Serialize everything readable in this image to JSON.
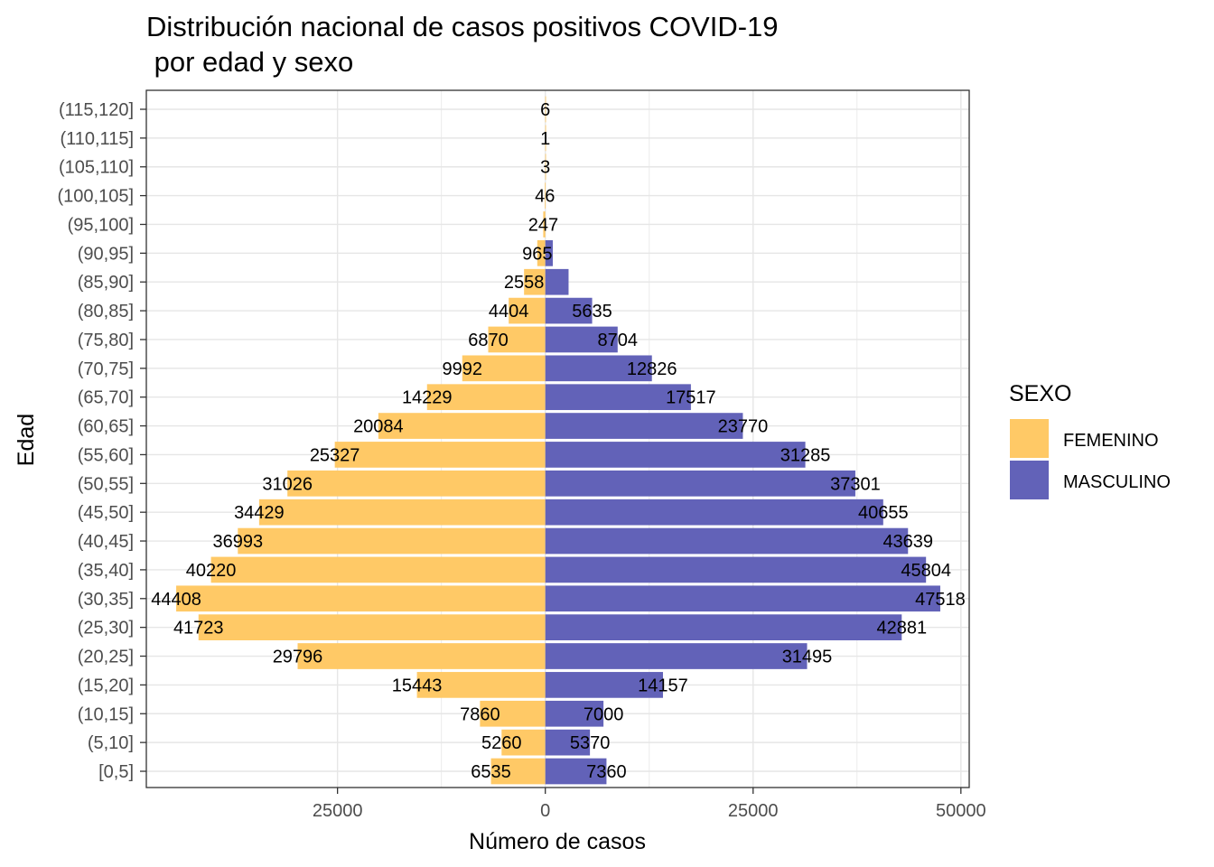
{
  "chart_data": {
    "type": "bar",
    "orientation": "horizontal",
    "layout": "population-pyramid",
    "title": [
      "Distribución nacional de casos positivos COVID-19",
      " por edad y sexo"
    ],
    "xlabel": "Número de casos",
    "ylabel": "Edad",
    "xlim": [
      -48000,
      51000
    ],
    "x_ticks": [
      {
        "value": -25000,
        "label": "25000"
      },
      {
        "value": 0,
        "label": "0"
      },
      {
        "value": 25000,
        "label": "25000"
      },
      {
        "value": 50000,
        "label": "50000"
      }
    ],
    "categories": [
      "[0,5]",
      "(5,10]",
      "(10,15]",
      "(15,20]",
      "(20,25]",
      "(25,30]",
      "(30,35]",
      "(35,40]",
      "(40,45]",
      "(45,50]",
      "(50,55]",
      "(55,60]",
      "(60,65]",
      "(65,70]",
      "(70,75]",
      "(75,80]",
      "(80,85]",
      "(85,90]",
      "(90,95]",
      "(95,100]",
      "(100,105]",
      "(105,110]",
      "(110,115]",
      "(115,120]"
    ],
    "series": [
      {
        "name": "FEMENINO",
        "color": "#ffc966",
        "side": "left",
        "values": [
          6535,
          5260,
          7860,
          15443,
          29796,
          41723,
          44408,
          40220,
          36993,
          34429,
          31026,
          25327,
          20084,
          14229,
          9992,
          6870,
          4404,
          2558,
          965,
          247,
          46,
          3,
          1,
          6
        ]
      },
      {
        "name": "MASCULINO",
        "color": "#6262b8",
        "side": "right",
        "values": [
          7360,
          5370,
          7000,
          14157,
          31495,
          42881,
          47518,
          45804,
          43639,
          40655,
          37301,
          31285,
          23770,
          17517,
          12826,
          8704,
          5635,
          2800,
          900,
          0,
          0,
          0,
          0,
          0
        ]
      }
    ],
    "grid": true,
    "legend": {
      "title": "SEXO",
      "position": "right"
    }
  }
}
